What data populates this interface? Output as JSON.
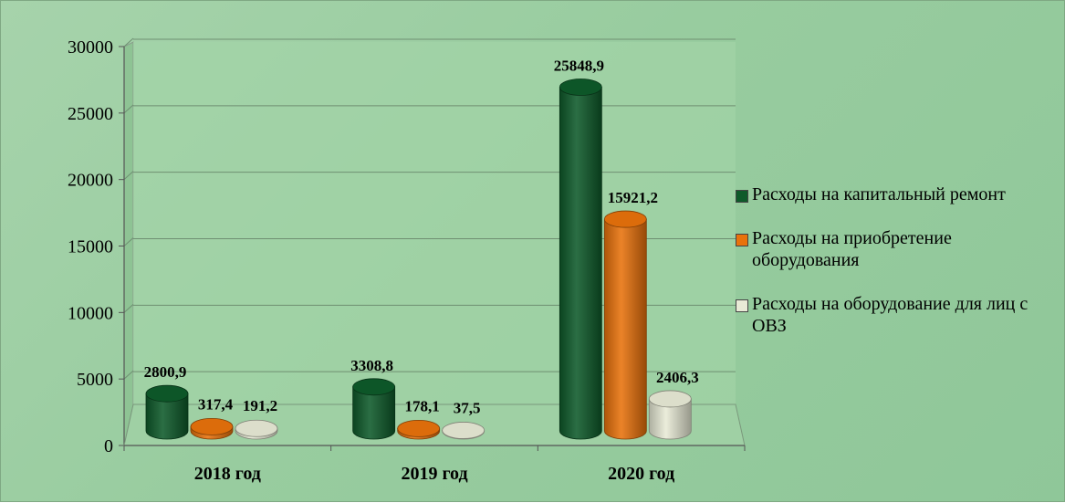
{
  "chart_data": {
    "type": "bar",
    "style": "3d-cylinder",
    "title": "",
    "xlabel": "",
    "ylabel": "",
    "categories": [
      "2018 год",
      "2019 год",
      "2020 год"
    ],
    "ylim": [
      0,
      30000
    ],
    "yticks": [
      0,
      5000,
      10000,
      15000,
      20000,
      25000,
      30000
    ],
    "grid": true,
    "legend_position": "right",
    "series": [
      {
        "name": "Расходы на капитальный ремонт",
        "values": [
          2800.9,
          3308.8,
          25848.9
        ],
        "labels": [
          "2800,9",
          "3308,8",
          "25848,9"
        ],
        "color": "#0e5a2a"
      },
      {
        "name": "Расходы на приобретение оборудования",
        "values": [
          317.4,
          178.1,
          15921.2
        ],
        "labels": [
          "317,4",
          "178,1",
          "15921,2"
        ],
        "color": "#e8720c"
      },
      {
        "name": "Расходы на оборудование для лиц с ОВЗ",
        "values": [
          191.2,
          37.5,
          2406.3
        ],
        "labels": [
          "191,2",
          "37,5",
          "2406,3"
        ],
        "color": "#e8ead6"
      }
    ]
  }
}
